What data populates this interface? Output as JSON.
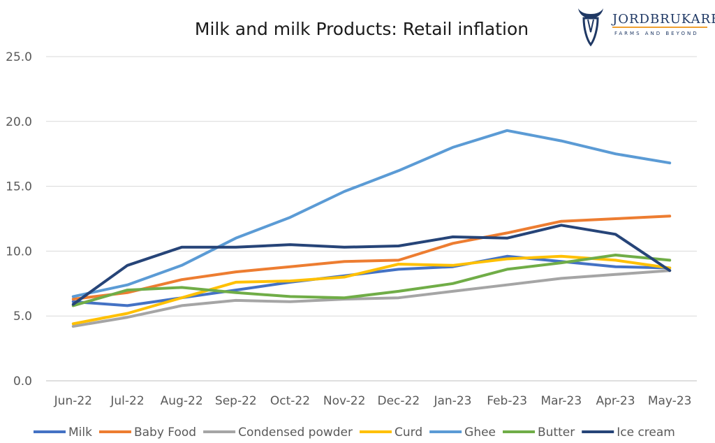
{
  "brand": {
    "name": "JORDBRUKARE",
    "tagline": "FARMS AND BEYOND",
    "logo_icon": "cow-head-icon",
    "color": "#1f3864",
    "accent": "#f0a030"
  },
  "chart_data": {
    "type": "line",
    "title": "Milk and milk Products: Retail inflation",
    "xlabel": "",
    "ylabel": "",
    "categories": [
      "Jun-22",
      "Jul-22",
      "Aug-22",
      "Sep-22",
      "Oct-22",
      "Nov-22",
      "Dec-22",
      "Jan-23",
      "Feb-23",
      "Mar-23",
      "Apr-23",
      "May-23"
    ],
    "ylim": [
      0,
      25
    ],
    "yticks": [
      "0.0",
      "5.0",
      "10.0",
      "15.0",
      "20.0",
      "25.0"
    ],
    "grid": true,
    "legend_position": "bottom",
    "series": [
      {
        "name": "Milk",
        "color": "#4472c4",
        "values": [
          6.1,
          5.8,
          6.4,
          7.0,
          7.6,
          8.1,
          8.6,
          8.8,
          9.6,
          9.2,
          8.8,
          8.7
        ]
      },
      {
        "name": "Baby Food",
        "color": "#ed7d31",
        "values": [
          6.3,
          6.8,
          7.8,
          8.4,
          8.8,
          9.2,
          9.3,
          10.6,
          11.4,
          12.3,
          12.5,
          12.7
        ]
      },
      {
        "name": "Condensed powder",
        "color": "#a5a5a5",
        "values": [
          4.2,
          4.9,
          5.8,
          6.2,
          6.1,
          6.3,
          6.4,
          6.9,
          7.4,
          7.9,
          8.2,
          8.5
        ]
      },
      {
        "name": "Curd",
        "color": "#ffc000",
        "values": [
          4.4,
          5.2,
          6.4,
          7.6,
          7.7,
          8.0,
          9.0,
          8.9,
          9.4,
          9.6,
          9.3,
          8.7
        ]
      },
      {
        "name": "Ghee",
        "color": "#5b9bd5",
        "values": [
          6.5,
          7.4,
          8.9,
          11.0,
          12.6,
          14.6,
          16.2,
          18.0,
          19.3,
          18.5,
          17.5,
          16.8
        ]
      },
      {
        "name": "Butter",
        "color": "#70ad47",
        "values": [
          5.8,
          7.0,
          7.2,
          6.8,
          6.5,
          6.4,
          6.9,
          7.5,
          8.6,
          9.1,
          9.7,
          9.3
        ]
      },
      {
        "name": "Ice cream",
        "color": "#264478",
        "values": [
          5.9,
          8.9,
          10.3,
          10.3,
          10.5,
          10.3,
          10.4,
          11.1,
          11.0,
          12.0,
          11.3,
          8.5
        ]
      }
    ]
  }
}
